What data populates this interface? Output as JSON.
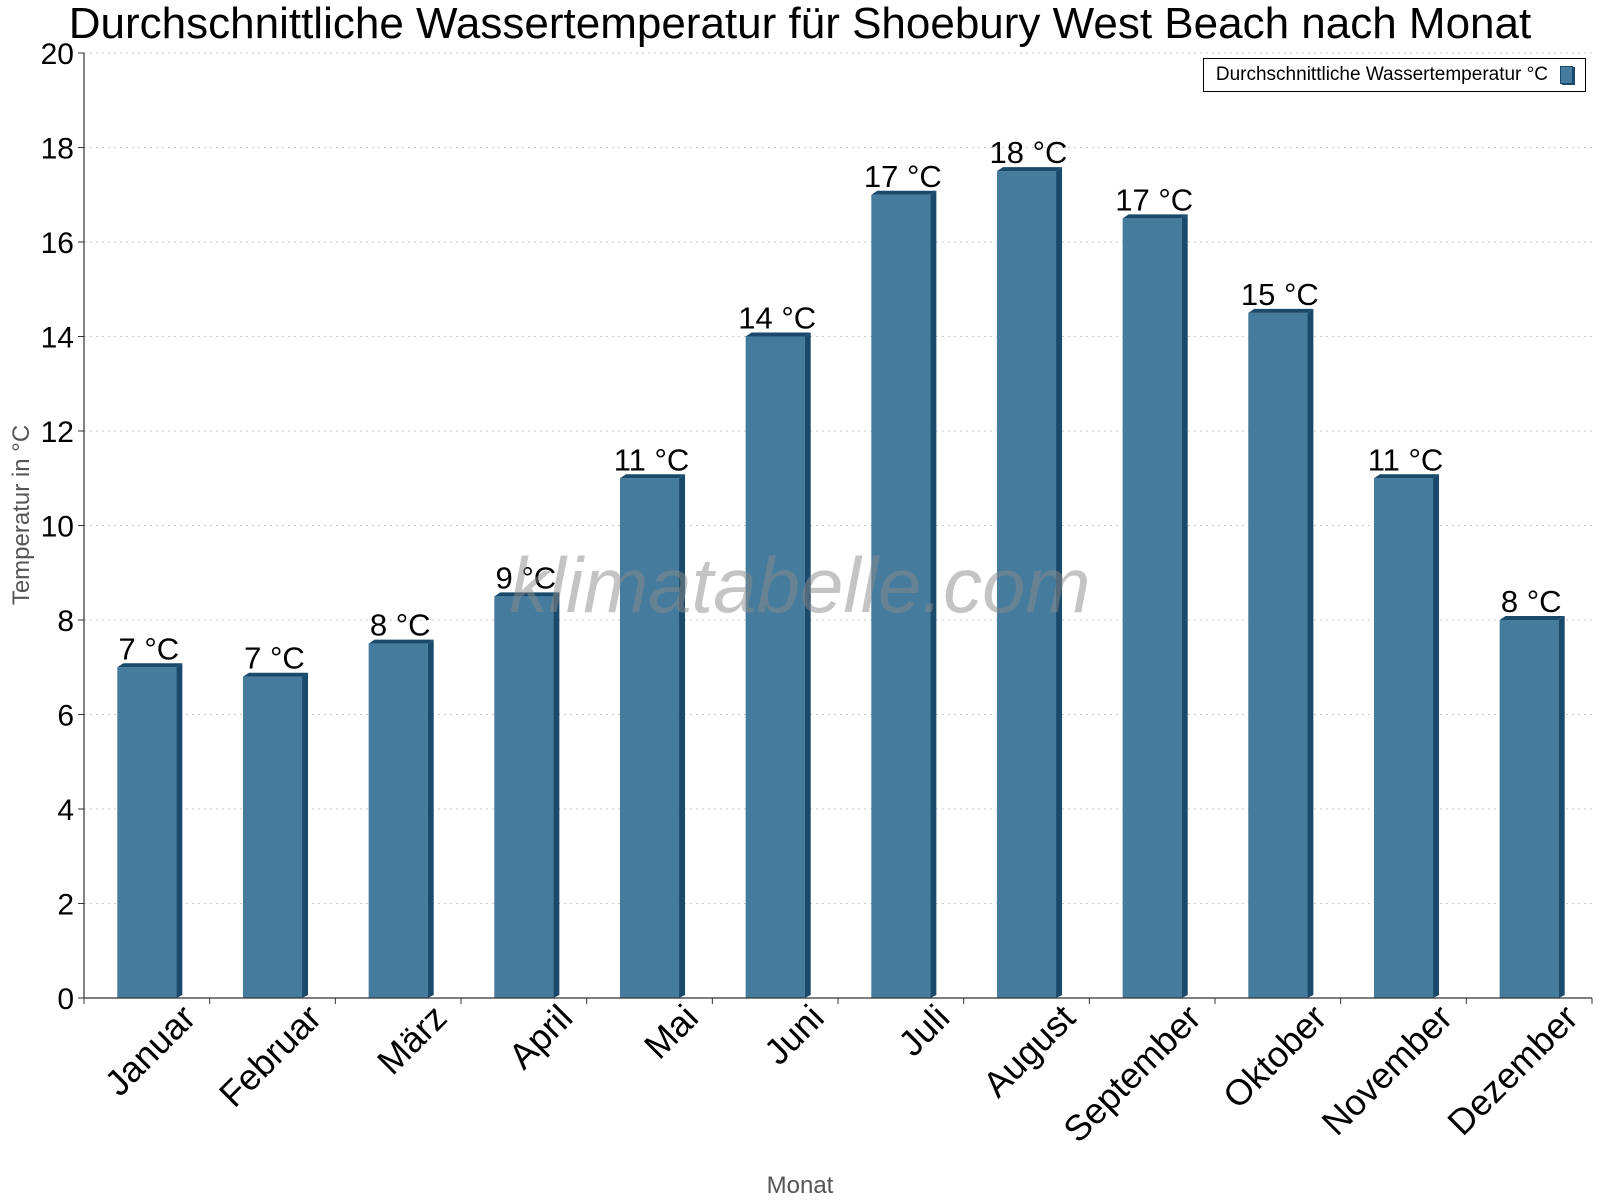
{
  "chart_data": {
    "type": "bar",
    "title": "Durchschnittliche Wassertemperatur für Shoebury West Beach nach Monat",
    "xlabel": "Monat",
    "ylabel": "Temperatur in °C",
    "ylim": [
      0,
      20
    ],
    "yticks": [
      0,
      2,
      4,
      6,
      8,
      10,
      12,
      14,
      16,
      18,
      20
    ],
    "grid": "horizontal-dotted",
    "legend_position": "top-right",
    "categories": [
      "Januar",
      "Februar",
      "März",
      "April",
      "Mai",
      "Juni",
      "Juli",
      "August",
      "September",
      "Oktober",
      "November",
      "Dezember"
    ],
    "series": [
      {
        "name": "Durchschnittliche Wassertemperatur °C",
        "values": [
          7.0,
          6.8,
          7.5,
          8.5,
          11.0,
          14.0,
          17.0,
          17.5,
          16.5,
          14.5,
          11.0,
          8.0
        ],
        "data_labels": [
          "7 °C",
          "7 °C",
          "8 °C",
          "9 °C",
          "11 °C",
          "14 °C",
          "17 °C",
          "18 °C",
          "17 °C",
          "15 °C",
          "11 °C",
          "8 °C"
        ],
        "color": "#457b9d",
        "edge_color": "#1a4a6b"
      }
    ]
  },
  "watermark": "klimatabelle.com"
}
